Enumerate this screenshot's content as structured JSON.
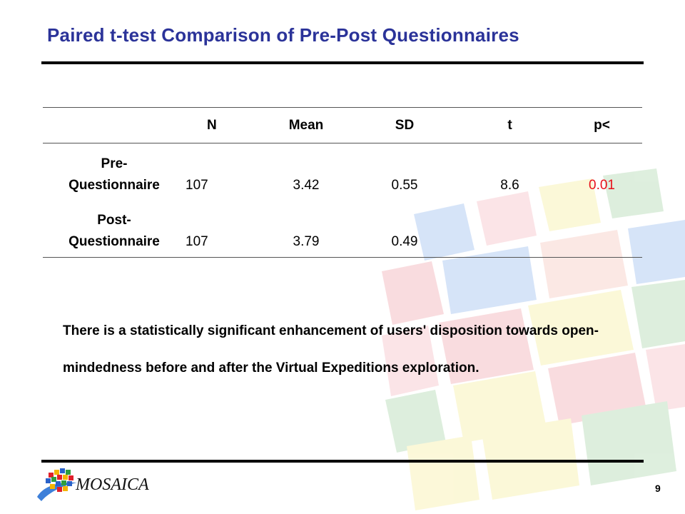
{
  "slide": {
    "title": "Paired t-test Comparison of Pre-Post Questionnaires",
    "table": {
      "columns": [
        "",
        "N",
        "Mean",
        "SD",
        "t",
        "p<"
      ],
      "rows": [
        {
          "label_line1": "Pre-",
          "label_line2": "Questionnaire",
          "n": "107",
          "mean": "3.42",
          "sd": "0.55",
          "t": "8.6",
          "p": "0.01"
        },
        {
          "label_line1": "Post-",
          "label_line2": "Questionnaire",
          "n": "107",
          "mean": "3.79",
          "sd": "0.49",
          "t": "",
          "p": ""
        }
      ]
    },
    "note": "There is a statistically significant enhancement of users' disposition towards open-mindedness before and after the Virtual Expeditions exploration.",
    "logo_text": "MOSAICA",
    "page_number": "9"
  },
  "colors": {
    "title": "#2b3399",
    "significant_value": "#e8101a"
  }
}
